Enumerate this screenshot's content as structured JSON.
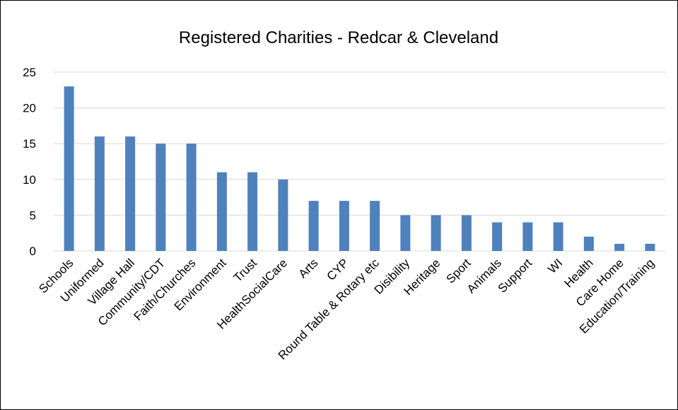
{
  "chart_data": {
    "type": "bar",
    "title": "Registered Charities - Redcar & Cleveland",
    "xlabel": "",
    "ylabel": "",
    "categories": [
      "Schools",
      "Uniformed",
      "Village Hall",
      "Community/CDT",
      "Faith/Churches",
      "Environment",
      "Trust",
      "HealthSocialCare",
      "Arts",
      "CYP",
      "Round Table & Rotary etc",
      "Disibility",
      "Heritage",
      "Sport",
      "Animals",
      "Support",
      "WI",
      "Health",
      "Care Home",
      "Education/Training"
    ],
    "values": [
      23,
      16,
      16,
      15,
      15,
      11,
      11,
      10,
      7,
      7,
      7,
      5,
      5,
      5,
      4,
      4,
      4,
      2,
      1,
      1
    ],
    "ylim": [
      0,
      25
    ],
    "yticks": [
      0,
      5,
      10,
      15,
      20,
      25
    ],
    "grid": true,
    "legend": "none",
    "bar_color": "#4f81bd",
    "grid_color": "#d9d9d9"
  }
}
